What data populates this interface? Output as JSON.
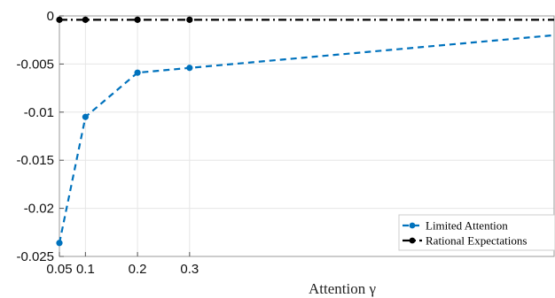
{
  "chart_data": {
    "type": "line",
    "xlabel": "Attention γ",
    "ylabel": "",
    "xlim": [
      0.05,
      1.0
    ],
    "ylim": [
      -0.025,
      0.0
    ],
    "x_ticks": [
      0.05,
      0.1,
      0.2,
      0.3
    ],
    "x_tick_labels": [
      "0.05",
      "0.1",
      "0.2",
      "0.3"
    ],
    "y_ticks": [
      0,
      -0.005,
      -0.01,
      -0.015,
      -0.02,
      -0.025
    ],
    "y_tick_labels": [
      "0",
      "-0.005",
      "-0.01",
      "-0.015",
      "-0.02",
      "-0.025"
    ],
    "grid": true,
    "legend_position": "bottom-right",
    "series": [
      {
        "name": "Limited Attention",
        "color": "#0072BD",
        "line_style": "dashed",
        "x": [
          0.05,
          0.1,
          0.2,
          0.3,
          1.0
        ],
        "y": [
          -0.0236,
          -0.0105,
          -0.0059,
          -0.0054,
          -0.002
        ],
        "markers_at": [
          0,
          1,
          2,
          3
        ]
      },
      {
        "name": "Rational Expectations",
        "color": "#000000",
        "line_style": "dash-dot",
        "x": [
          0.05,
          0.1,
          0.2,
          0.3,
          1.0
        ],
        "y": [
          -0.0004,
          -0.0004,
          -0.0004,
          -0.0004,
          -0.0004
        ],
        "markers_at": [
          0,
          1,
          2,
          3
        ]
      }
    ]
  }
}
